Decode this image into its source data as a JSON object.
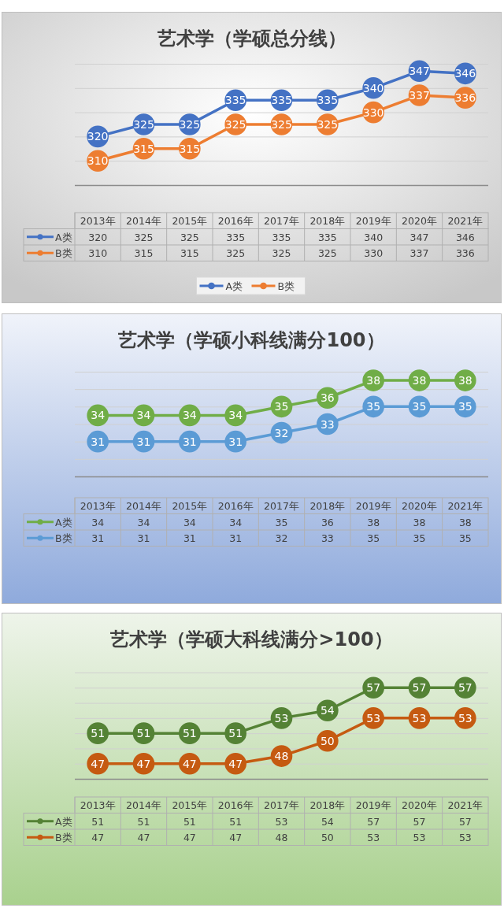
{
  "chart_data": [
    {
      "type": "line",
      "title": "艺术学（学硕总分线）",
      "categories": [
        "2013年",
        "2014年",
        "2015年",
        "2016年",
        "2017年",
        "2018年",
        "2019年",
        "2020年",
        "2021年"
      ],
      "series": [
        {
          "name": "A类",
          "color": "#4472c4",
          "values": [
            320,
            325,
            325,
            335,
            335,
            335,
            340,
            347,
            346
          ]
        },
        {
          "name": "B类",
          "color": "#ed7d31",
          "values": [
            310,
            315,
            315,
            325,
            325,
            325,
            330,
            337,
            336
          ]
        }
      ],
      "annotations": [
        {
          "text": "320",
          "x": "2013年",
          "y": 320
        },
        {
          "text": "325",
          "x": "2014年",
          "y": 325
        },
        {
          "text": "325",
          "x": "2015年",
          "y": 325
        },
        {
          "text": "335",
          "x": "2016年",
          "y": 335
        },
        {
          "text": "335",
          "x": "2017年",
          "y": 335
        },
        {
          "text": "335",
          "x": "2018年",
          "y": 335
        },
        {
          "text": "340",
          "x": "2019年",
          "y": 340
        },
        {
          "text": "347",
          "x": "2020年",
          "y": 347
        },
        {
          "text": "346",
          "x": "2021年",
          "y": 346
        },
        {
          "text": "310",
          "x": "2013年",
          "y": 310
        },
        {
          "text": "315",
          "x": "2014年",
          "y": 315
        },
        {
          "text": "315",
          "x": "2015年",
          "y": 315
        },
        {
          "text": "325",
          "x": "2016年",
          "y": 325
        },
        {
          "text": "325",
          "x": "2017年",
          "y": 325
        },
        {
          "text": "325",
          "x": "2018年",
          "y": 325
        },
        {
          "text": "330",
          "x": "2019年",
          "y": 330
        },
        {
          "text": "337",
          "x": "2020年",
          "y": 337
        },
        {
          "text": "336",
          "x": "2021年",
          "y": 336
        }
      ],
      "ylim": [
        300,
        350
      ],
      "yticks": [
        {
          "value": 300,
          "label": null
        },
        {
          "value": 310,
          "label": null
        },
        {
          "value": 320,
          "label": null
        },
        {
          "value": 330,
          "label": null
        },
        {
          "value": 340,
          "label": null
        },
        {
          "value": 350,
          "label": null
        }
      ],
      "tick_labels": "x",
      "grid": "y",
      "marker": "circle",
      "line_style": "solid",
      "data_labels": true,
      "legend": "bottom"
    },
    {
      "type": "line",
      "title": "艺术学（学硕小科线满分100）",
      "categories": [
        "2013年",
        "2014年",
        "2015年",
        "2016年",
        "2017年",
        "2018年",
        "2019年",
        "2020年",
        "2021年"
      ],
      "series": [
        {
          "name": "A类",
          "color": "#70ad47",
          "values": [
            34,
            34,
            34,
            34,
            35,
            36,
            38,
            38,
            38
          ]
        },
        {
          "name": "B类",
          "color": "#5b9bd5",
          "values": [
            31,
            31,
            31,
            31,
            32,
            33,
            35,
            35,
            35
          ]
        }
      ],
      "annotations": [
        {
          "text": "34",
          "x": "2013年",
          "y": 34
        },
        {
          "text": "34",
          "x": "2014年",
          "y": 34
        },
        {
          "text": "34",
          "x": "2015年",
          "y": 34
        },
        {
          "text": "34",
          "x": "2016年",
          "y": 34
        },
        {
          "text": "35",
          "x": "2017年",
          "y": 35
        },
        {
          "text": "36",
          "x": "2018年",
          "y": 36
        },
        {
          "text": "38",
          "x": "2019年",
          "y": 38
        },
        {
          "text": "38",
          "x": "2020年",
          "y": 38
        },
        {
          "text": "38",
          "x": "2021年",
          "y": 38
        },
        {
          "text": "31",
          "x": "2013年",
          "y": 31
        },
        {
          "text": "31",
          "x": "2014年",
          "y": 31
        },
        {
          "text": "31",
          "x": "2015年",
          "y": 31
        },
        {
          "text": "31",
          "x": "2016年",
          "y": 31
        },
        {
          "text": "32",
          "x": "2017年",
          "y": 32
        },
        {
          "text": "33",
          "x": "2018年",
          "y": 33
        },
        {
          "text": "35",
          "x": "2019年",
          "y": 35
        },
        {
          "text": "35",
          "x": "2020年",
          "y": 35
        },
        {
          "text": "35",
          "x": "2021年",
          "y": 35
        }
      ],
      "ylim": [
        27,
        39
      ],
      "yticks": [
        {
          "value": 27,
          "label": null
        },
        {
          "value": 29,
          "label": null
        },
        {
          "value": 31,
          "label": null
        },
        {
          "value": 33,
          "label": null
        },
        {
          "value": 35,
          "label": null
        },
        {
          "value": 37,
          "label": null
        },
        {
          "value": 39,
          "label": null
        }
      ],
      "tick_labels": "x",
      "grid": "y",
      "marker": "circle",
      "line_style": "solid",
      "data_labels": true,
      "legend": "bottom left"
    },
    {
      "type": "line",
      "title": "艺术学（学硕大科线满分>100）",
      "categories": [
        "2013年",
        "2014年",
        "2015年",
        "2016年",
        "2017年",
        "2018年",
        "2019年",
        "2020年",
        "2021年"
      ],
      "series": [
        {
          "name": "A类",
          "color": "#548235",
          "values": [
            51,
            51,
            51,
            51,
            53,
            54,
            57,
            57,
            57
          ]
        },
        {
          "name": "B类",
          "color": "#c55a11",
          "values": [
            47,
            47,
            47,
            47,
            48,
            50,
            53,
            53,
            53
          ]
        }
      ],
      "annotations": [
        {
          "text": "51",
          "x": "2013年",
          "y": 51
        },
        {
          "text": "51",
          "x": "2014年",
          "y": 51
        },
        {
          "text": "51",
          "x": "2015年",
          "y": 51
        },
        {
          "text": "51",
          "x": "2016年",
          "y": 51
        },
        {
          "text": "53",
          "x": "2017年",
          "y": 53
        },
        {
          "text": "54",
          "x": "2018年",
          "y": 54
        },
        {
          "text": "57",
          "x": "2019年",
          "y": 57
        },
        {
          "text": "57",
          "x": "2020年",
          "y": 57
        },
        {
          "text": "57",
          "x": "2021年",
          "y": 57
        },
        {
          "text": "47",
          "x": "2013年",
          "y": 47
        },
        {
          "text": "47",
          "x": "2014年",
          "y": 47
        },
        {
          "text": "47",
          "x": "2015年",
          "y": 47
        },
        {
          "text": "47",
          "x": "2016年",
          "y": 47
        },
        {
          "text": "48",
          "x": "2017年",
          "y": 48
        },
        {
          "text": "50",
          "x": "2018年",
          "y": 50
        },
        {
          "text": "53",
          "x": "2019年",
          "y": 53
        },
        {
          "text": "53",
          "x": "2020年",
          "y": 53
        },
        {
          "text": "53",
          "x": "2021年",
          "y": 53
        }
      ],
      "ylim": [
        45,
        59
      ],
      "yticks": [
        {
          "value": 45,
          "label": null
        },
        {
          "value": 47,
          "label": null
        },
        {
          "value": 49,
          "label": null
        },
        {
          "value": 51,
          "label": null
        },
        {
          "value": 53,
          "label": null
        },
        {
          "value": 55,
          "label": null
        },
        {
          "value": 57,
          "label": null
        },
        {
          "value": 59,
          "label": null
        }
      ],
      "tick_labels": "x",
      "grid": "y",
      "marker": "circle",
      "line_style": "solid",
      "data_labels": true,
      "legend": "bottom left"
    }
  ]
}
